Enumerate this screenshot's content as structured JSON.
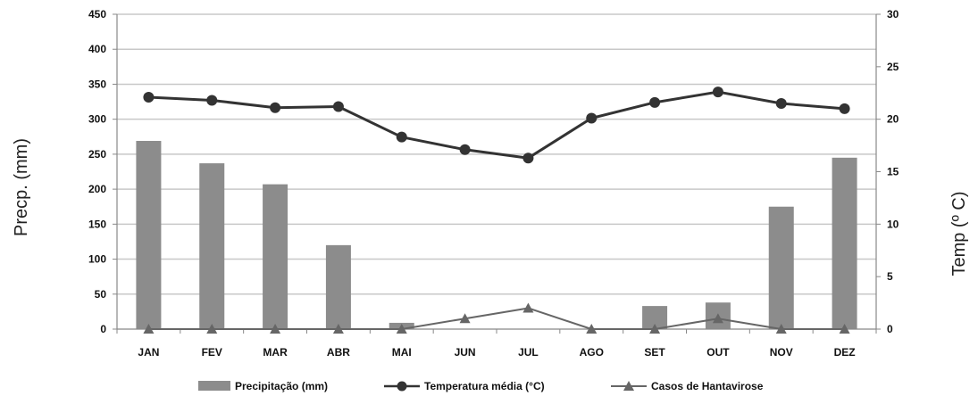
{
  "chart_data": {
    "type": "bar",
    "categories": [
      "JAN",
      "FEV",
      "MAR",
      "ABR",
      "MAI",
      "JUN",
      "JUL",
      "AGO",
      "SET",
      "OUT",
      "NOV",
      "DEZ"
    ],
    "series": [
      {
        "name": "Precipitação (mm)",
        "type": "bar",
        "axis": "left",
        "color": "#8c8c8c",
        "values": [
          269,
          237,
          207,
          120,
          9,
          0,
          0,
          0,
          33,
          38,
          175,
          245
        ]
      },
      {
        "name": "Temperatura média (°C)",
        "type": "line",
        "axis": "right",
        "marker": "circle",
        "color": "#333333",
        "values": [
          22.1,
          21.8,
          21.1,
          21.2,
          18.3,
          17.1,
          16.3,
          20.1,
          21.6,
          22.6,
          21.5,
          21.0
        ]
      },
      {
        "name": "Casos de Hantavirose",
        "type": "line",
        "axis": "right",
        "marker": "triangle",
        "color": "#666666",
        "values": [
          0,
          0,
          0,
          0,
          0,
          1,
          2,
          0,
          0,
          1,
          0,
          0
        ]
      }
    ],
    "ylabel": "Precp. (mm)",
    "y2label": "Temp (º C)",
    "ylim": [
      0,
      450
    ],
    "y2lim": [
      0,
      30
    ],
    "yticks": [
      0,
      50,
      100,
      150,
      200,
      250,
      300,
      350,
      400,
      450
    ],
    "y2ticks": [
      0,
      5,
      10,
      15,
      20,
      25,
      30
    ],
    "grid": true,
    "legend_position": "bottom"
  }
}
